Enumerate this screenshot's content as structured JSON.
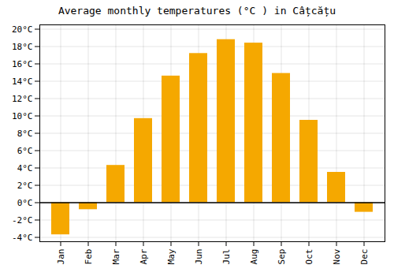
{
  "chart_data": {
    "type": "bar",
    "title": "Average monthly temperatures (°C ) in Câțcățu",
    "categories": [
      "Jan",
      "Feb",
      "Mar",
      "Apr",
      "May",
      "Jun",
      "Jul",
      "Aug",
      "Sep",
      "Oct",
      "Nov",
      "Dec"
    ],
    "values": [
      -3.7,
      -0.8,
      4.3,
      9.7,
      14.6,
      17.2,
      18.8,
      18.4,
      14.9,
      9.5,
      3.5,
      -1.1
    ],
    "color": "#F5A800",
    "ylim": [
      -4.5,
      20.5
    ],
    "yticks": [
      {
        "value": -4,
        "label": "-4°C"
      },
      {
        "value": -2,
        "label": "-2°C"
      },
      {
        "value": 0,
        "label": "0°C"
      },
      {
        "value": 2,
        "label": "2°C"
      },
      {
        "value": 4,
        "label": "4°C"
      },
      {
        "value": 6,
        "label": "6°C"
      },
      {
        "value": 8,
        "label": "8°C"
      },
      {
        "value": 10,
        "label": "10°C"
      },
      {
        "value": 12,
        "label": "12°C"
      },
      {
        "value": 14,
        "label": "14°C"
      },
      {
        "value": 16,
        "label": "16°C"
      },
      {
        "value": 18,
        "label": "18°C"
      },
      {
        "value": 20,
        "label": "20°C"
      }
    ],
    "grid": true
  }
}
